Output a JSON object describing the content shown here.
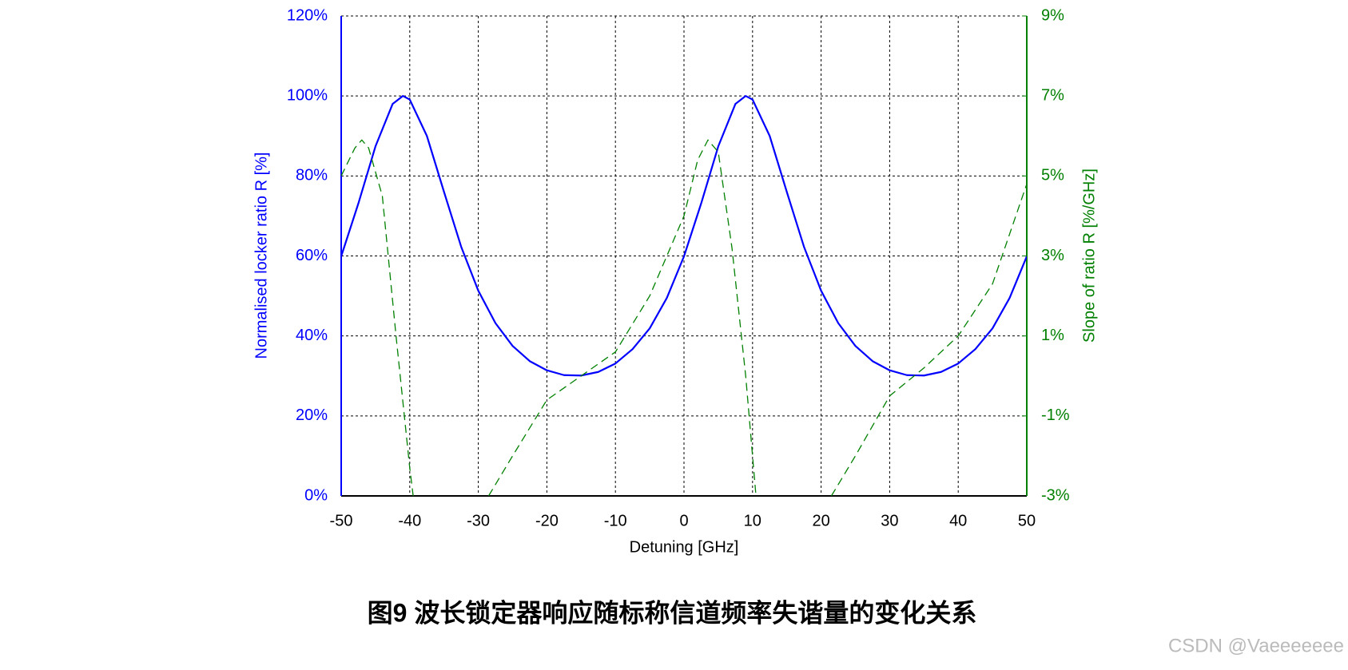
{
  "chart_data": {
    "type": "line",
    "caption": "图9 波长锁定器响应随标称信道频率失谐量的变化关系",
    "watermark": "CSDN @Vaeeeeeee",
    "xlabel": "Detuning [GHz]",
    "ylabel": "Normalised locker ratio R [%]",
    "y2label": "Slope of ratio R [%/GHz]",
    "xlim": [
      -50,
      50
    ],
    "xticks": [
      -50,
      -40,
      -30,
      -20,
      -10,
      0,
      10,
      20,
      30,
      40,
      50
    ],
    "ylim": [
      0,
      120
    ],
    "yticks": [
      {
        "value": 0,
        "label": "0%"
      },
      {
        "value": 20,
        "label": "20%"
      },
      {
        "value": 40,
        "label": "40%"
      },
      {
        "value": 60,
        "label": "60%"
      },
      {
        "value": 80,
        "label": "80%"
      },
      {
        "value": 100,
        "label": "100%"
      },
      {
        "value": 120,
        "label": "120%"
      }
    ],
    "y2lim": [
      -3,
      9
    ],
    "y2ticks": [
      {
        "value": -3,
        "label": "-3%"
      },
      {
        "value": -1,
        "label": "-1%"
      },
      {
        "value": 1,
        "label": "1%"
      },
      {
        "value": 3,
        "label": "3%"
      },
      {
        "value": 5,
        "label": "5%"
      },
      {
        "value": 7,
        "label": "7%"
      },
      {
        "value": 9,
        "label": "9%"
      }
    ],
    "ycolor": "#0000ff",
    "y2color": "#008000",
    "grid": true,
    "series": [
      {
        "color": "#0000ff",
        "linestyle": "solid",
        "axis": "y",
        "x": [
          -50,
          -47.5,
          -45,
          -42.5,
          -41,
          -40,
          -37.5,
          -35,
          -32.5,
          -30,
          -27.5,
          -25,
          -22.5,
          -20,
          -17.5,
          -15,
          -12.5,
          -10,
          -7.5,
          -5,
          -2.5,
          0,
          2.5,
          5,
          7.5,
          9,
          10,
          12.5,
          15,
          17.5,
          20,
          22.5,
          25,
          27.5,
          30,
          32.5,
          35,
          37.5,
          40,
          42.5,
          45,
          47.5,
          50
        ],
        "values": [
          59.9,
          73.1,
          87.4,
          98.0,
          100,
          99.1,
          90.0,
          76.0,
          62.3,
          51.3,
          43.2,
          37.5,
          33.7,
          31.4,
          30.2,
          30.1,
          31.0,
          33.1,
          36.7,
          41.9,
          49.5,
          59.9,
          73.1,
          87.4,
          98.0,
          100,
          99.1,
          90.0,
          76.0,
          62.3,
          51.3,
          43.2,
          37.5,
          33.7,
          31.4,
          30.2,
          30.1,
          31.0,
          33.1,
          36.7,
          41.9,
          49.5,
          59.9
        ]
      },
      {
        "color": "#008000",
        "linestyle": "dashed",
        "axis": "y2",
        "x": [
          -50,
          -48,
          -47,
          -46,
          -44,
          -42,
          -40,
          -39.5,
          -35,
          -28.5,
          -25,
          -20,
          -15,
          -10,
          -5,
          0,
          2,
          3.5,
          5,
          7,
          9,
          10.5,
          15,
          21.5,
          25,
          30,
          35,
          40,
          45,
          50
        ],
        "values": [
          5.0,
          5.7,
          5.9,
          5.7,
          4.5,
          1.0,
          -2.3,
          -3.0,
          null,
          -3.0,
          -2.0,
          -0.6,
          0.0,
          0.6,
          2.0,
          4.0,
          5.4,
          5.9,
          5.6,
          3.2,
          0.0,
          -3.0,
          null,
          -3.0,
          -2.0,
          -0.5,
          0.2,
          1.0,
          2.3,
          4.8
        ]
      }
    ]
  }
}
